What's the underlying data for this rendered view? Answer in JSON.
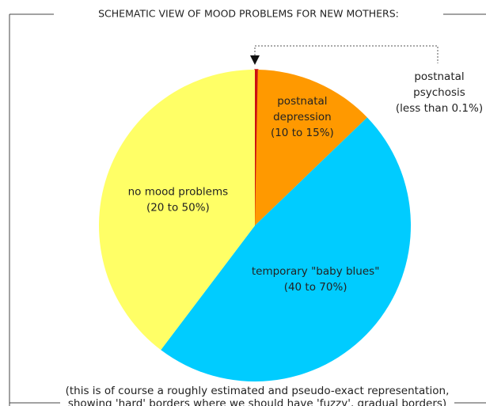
{
  "chart_data": {
    "type": "pie",
    "title": "SCHEMATIC VIEW OF MOOD PROBLEMS FOR NEW MOTHERS:",
    "categories": [
      [
        "postnatal",
        "psychosis",
        "(less than 0.1%)"
      ],
      [
        "postnatal",
        "depression",
        "(10 to 15%)"
      ],
      [
        "temporary \"baby blues\"",
        "(40 to 70%)"
      ],
      [
        "no mood problems",
        "(20 to 50%)"
      ]
    ],
    "values": [
      0.3,
      12.5,
      47.5,
      39.7
    ],
    "colors": [
      "#cc1111",
      "#ff9900",
      "#00ccff",
      "#ffff66"
    ],
    "note": [
      "(this is of course a roughly estimated and pseudo-exact representation,",
      "showing 'hard' borders where we should have 'fuzzy', gradual borders)"
    ]
  }
}
